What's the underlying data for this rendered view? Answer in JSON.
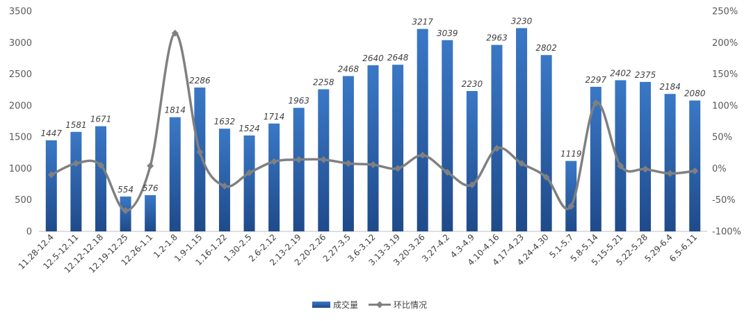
{
  "chart_data": {
    "type": "bar",
    "categories": [
      "11.28-12.4",
      "12.5-12.11",
      "12.12-12.18",
      "12.19-12.25",
      "12.26-1.1",
      "1.2-1.8",
      "1.9-1.15",
      "1.16-1.22",
      "1.30-2.5",
      "2.6-2.12",
      "2.13-2.19",
      "2.20-2.26",
      "2.27-3.5",
      "3.6-3.12",
      "3.13-3.19",
      "3.20-3.26",
      "3.27-4.2",
      "4.3-4.9",
      "4.10-4.16",
      "4.17-4.23",
      "4.24-4.30",
      "5.1-5.7",
      "5.8-5.14",
      "5.15-5.21",
      "5.22-5.28",
      "5.29-6.4",
      "6.5-6.11"
    ],
    "series": [
      {
        "name": "成交量",
        "type": "bar",
        "axis": "left",
        "values": [
          1447,
          1581,
          1671,
          554,
          576,
          1814,
          2286,
          1632,
          1524,
          1714,
          1963,
          2258,
          2468,
          2640,
          2648,
          3217,
          3039,
          2230,
          2963,
          3230,
          2802,
          1119,
          2297,
          2402,
          2375,
          2184,
          2080
        ],
        "color": "#2e64ad"
      },
      {
        "name": "环比情况",
        "type": "line",
        "axis": "right",
        "values": [
          -10,
          8,
          5,
          -67,
          4,
          215,
          26,
          -28,
          -7,
          11,
          14,
          14,
          8,
          6,
          0,
          21,
          -6,
          -26,
          32,
          8,
          -14,
          -60,
          104,
          4,
          -1,
          -8,
          -4
        ],
        "color": "#808080"
      }
    ],
    "y_left": {
      "min": 0,
      "max": 3500,
      "step": 500,
      "ticks": [
        "0",
        "500",
        "1000",
        "1500",
        "2000",
        "2500",
        "3000",
        "3500"
      ]
    },
    "y_right": {
      "min": -100,
      "max": 250,
      "step": 50,
      "ticks": [
        "-100%",
        "-50%",
        "0%",
        "50%",
        "100%",
        "150%",
        "200%",
        "250%"
      ]
    },
    "data_labels": true,
    "grid": false,
    "legend_position": "bottom"
  }
}
